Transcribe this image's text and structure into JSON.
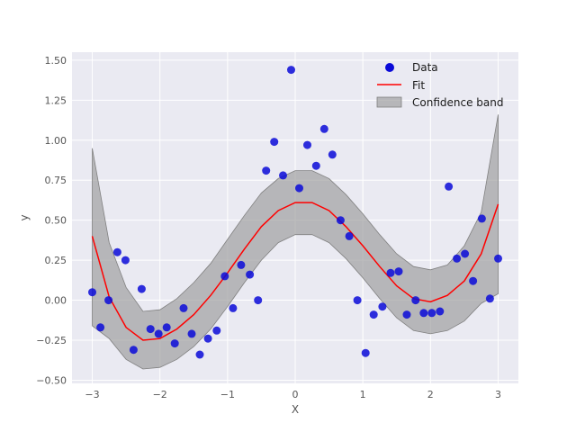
{
  "chart_data": {
    "type": "scatter",
    "title": "",
    "xlabel": "X",
    "ylabel": "y",
    "xlim": [
      -3.3,
      3.3
    ],
    "ylim": [
      -0.52,
      1.55
    ],
    "xticks": [
      -3,
      -2,
      -1,
      0,
      1,
      2,
      3
    ],
    "xtick_labels": [
      "−3",
      "−2",
      "−1",
      "0",
      "1",
      "2",
      "3"
    ],
    "yticks": [
      -0.5,
      -0.25,
      0.0,
      0.25,
      0.5,
      0.75,
      1.0,
      1.25,
      1.5
    ],
    "ytick_labels": [
      "−0.50",
      "−0.25",
      "0.00",
      "0.25",
      "0.50",
      "0.75",
      "1.00",
      "1.25",
      "1.50"
    ],
    "grid": true,
    "legend_position": "top-right",
    "colors": {
      "plot_bg": "#eaeaf2",
      "grid": "#ffffff",
      "data": "#0a0ad8",
      "fit": "#ff0000",
      "band": "#999999"
    },
    "series": [
      {
        "name": "Data",
        "kind": "scatter",
        "x": [
          -3.0,
          -2.88,
          -2.76,
          -2.63,
          -2.51,
          -2.39,
          -2.27,
          -2.14,
          -2.02,
          -1.9,
          -1.78,
          -1.65,
          -1.53,
          -1.41,
          -1.29,
          -1.16,
          -1.04,
          -0.92,
          -0.8,
          -0.67,
          -0.55,
          -0.43,
          -0.31,
          -0.18,
          -0.06,
          0.06,
          0.18,
          0.31,
          0.43,
          0.55,
          0.67,
          0.8,
          0.92,
          1.04,
          1.16,
          1.29,
          1.41,
          1.53,
          1.65,
          1.78,
          1.9,
          2.02,
          2.14,
          2.27,
          2.39,
          2.51,
          2.63,
          2.76,
          2.88,
          3.0
        ],
        "y": [
          0.05,
          -0.17,
          0.0,
          0.3,
          0.25,
          -0.31,
          0.07,
          -0.18,
          -0.21,
          -0.17,
          -0.27,
          -0.05,
          -0.21,
          -0.34,
          -0.24,
          -0.19,
          0.15,
          -0.05,
          0.22,
          0.16,
          0.0,
          0.81,
          0.99,
          0.78,
          1.44,
          0.7,
          0.97,
          0.84,
          1.07,
          0.91,
          0.5,
          0.4,
          0.0,
          -0.33,
          -0.09,
          -0.04,
          0.17,
          0.18,
          -0.09,
          0.0,
          -0.08,
          -0.08,
          -0.07,
          0.71,
          0.26,
          0.29,
          0.12,
          0.51,
          0.01,
          0.26
        ]
      },
      {
        "name": "Fit",
        "kind": "line",
        "x": [
          -3.0,
          -2.75,
          -2.5,
          -2.25,
          -2.0,
          -1.75,
          -1.5,
          -1.25,
          -1.0,
          -0.75,
          -0.5,
          -0.25,
          0.0,
          0.25,
          0.5,
          0.75,
          1.0,
          1.25,
          1.5,
          1.75,
          2.0,
          2.25,
          2.5,
          2.75,
          3.0
        ],
        "y": [
          0.4,
          0.02,
          -0.17,
          -0.25,
          -0.24,
          -0.18,
          -0.09,
          0.03,
          0.17,
          0.32,
          0.46,
          0.56,
          0.61,
          0.61,
          0.56,
          0.46,
          0.34,
          0.21,
          0.09,
          0.01,
          -0.01,
          0.03,
          0.12,
          0.29,
          0.6
        ]
      },
      {
        "name": "Confidence band",
        "kind": "band",
        "x": [
          -3.0,
          -2.75,
          -2.5,
          -2.25,
          -2.0,
          -1.75,
          -1.5,
          -1.25,
          -1.0,
          -0.75,
          -0.5,
          -0.25,
          0.0,
          0.25,
          0.5,
          0.75,
          1.0,
          1.25,
          1.5,
          1.75,
          2.0,
          2.25,
          2.5,
          2.75,
          3.0
        ],
        "lower": [
          -0.16,
          -0.24,
          -0.37,
          -0.43,
          -0.42,
          -0.37,
          -0.29,
          -0.18,
          -0.04,
          0.11,
          0.25,
          0.36,
          0.41,
          0.41,
          0.36,
          0.26,
          0.14,
          0.01,
          -0.11,
          -0.19,
          -0.21,
          -0.19,
          -0.13,
          -0.02,
          0.04
        ],
        "upper": [
          0.95,
          0.36,
          0.08,
          -0.07,
          -0.06,
          0.01,
          0.11,
          0.23,
          0.38,
          0.53,
          0.67,
          0.76,
          0.81,
          0.81,
          0.76,
          0.66,
          0.54,
          0.41,
          0.29,
          0.21,
          0.19,
          0.22,
          0.34,
          0.55,
          1.16
        ]
      }
    ]
  }
}
